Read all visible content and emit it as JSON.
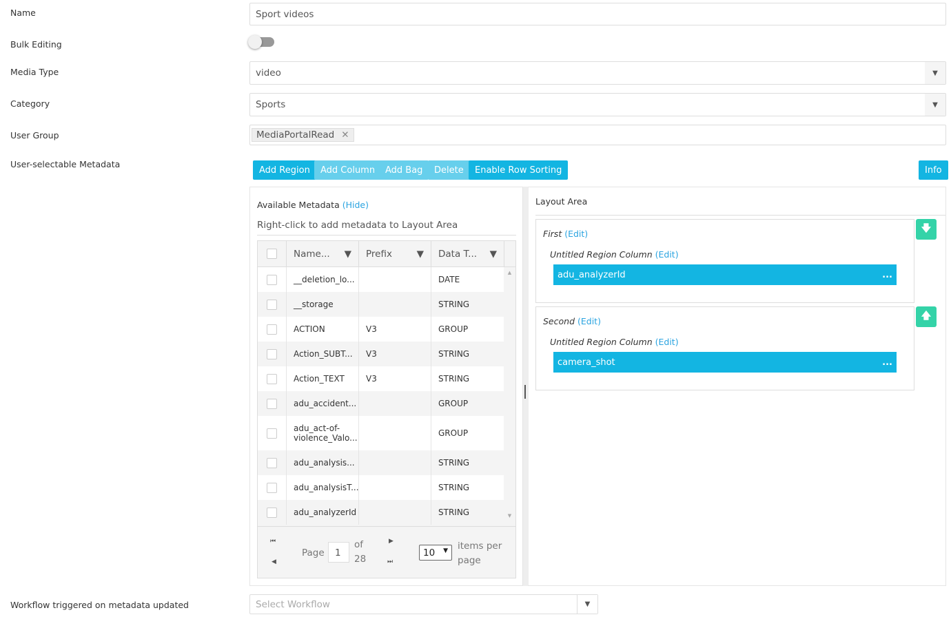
{
  "labels": {
    "name": "Name",
    "bulk": "Bulk Editing",
    "media_type": "Media Type",
    "category": "Category",
    "user_group": "User Group",
    "metadata": "User-selectable Metadata",
    "workflow": "Workflow triggered on metadata updated"
  },
  "fields": {
    "name_value": "Sport videos",
    "bulk_editing_on": false,
    "media_type": "video",
    "category": "Sports",
    "user_group_tag": "MediaPortalRead",
    "workflow_placeholder": "Select Workflow"
  },
  "toolbar": {
    "add_region": "Add Region",
    "add_column": "Add Column",
    "add_bag": "Add Bag",
    "delete": "Delete",
    "enable_row_sorting": "Enable Row Sorting",
    "info": "Info"
  },
  "available": {
    "title": "Available Metadata",
    "hide": "(Hide)",
    "hint": "Right-click to add metadata to Layout Area",
    "columns": [
      "Name...",
      "Prefix",
      "Data T..."
    ],
    "rows": [
      {
        "name": "__deletion_lo...",
        "prefix": "",
        "type": "DATE"
      },
      {
        "name": "__storage",
        "prefix": "",
        "type": "STRING"
      },
      {
        "name": "ACTION",
        "prefix": "V3",
        "type": "GROUP"
      },
      {
        "name": "Action_SUBT...",
        "prefix": "V3",
        "type": "STRING"
      },
      {
        "name": "Action_TEXT",
        "prefix": "V3",
        "type": "STRING"
      },
      {
        "name": "adu_accident...",
        "prefix": "",
        "type": "GROUP"
      },
      {
        "name": "adu_act-of-violence_Valo...",
        "prefix": "",
        "type": "GROUP"
      },
      {
        "name": "adu_analysis...",
        "prefix": "",
        "type": "STRING"
      },
      {
        "name": "adu_analysisT...",
        "prefix": "",
        "type": "STRING"
      },
      {
        "name": "adu_analyzerId",
        "prefix": "",
        "type": "STRING"
      }
    ],
    "pager": {
      "page_label": "Page",
      "page": "1",
      "of": "of",
      "total": "28",
      "per_page": "10",
      "items_per_page": "items per page"
    }
  },
  "layout": {
    "title": "Layout Area",
    "regions": [
      {
        "name": "First",
        "edit": "(Edit)",
        "column": "Untitled Region Column",
        "column_edit": "(Edit)",
        "item": "adu_analyzerId",
        "more": "...",
        "arrow": "arrow-down"
      },
      {
        "name": "Second",
        "edit": "(Edit)",
        "column": "Untitled Region Column",
        "column_edit": "(Edit)",
        "item": "camera_shot",
        "more": "...",
        "arrow": "arrow-up"
      }
    ]
  },
  "colors": {
    "primary": "#13b5e2",
    "disabled": "#67cfec",
    "arrow": "#34d3a8",
    "link": "#29a3e0"
  }
}
